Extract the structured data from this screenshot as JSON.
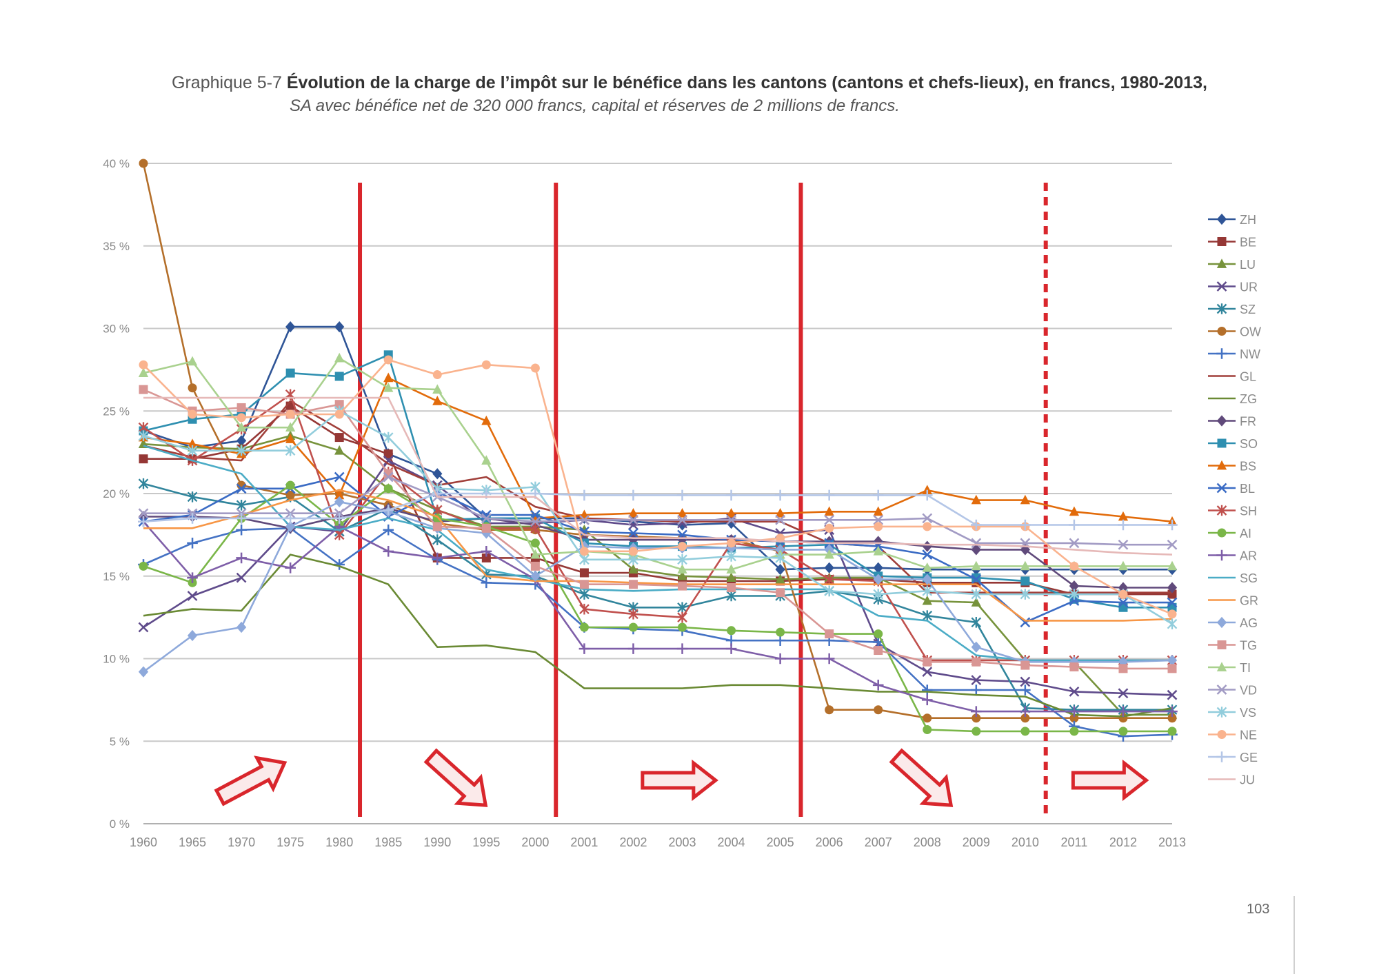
{
  "title": {
    "prefix": "Graphique 5-7",
    "main": "Évolution de la charge de l’impôt sur le bénéfice dans les cantons (cantons et chefs-lieux), en francs, 1980-2013,",
    "subtitle": "SA avec bénéfice net de 320 000 francs, capital et réserves de 2 millions de francs."
  },
  "page_number": "103",
  "chart_data": {
    "type": "line",
    "categories": [
      "1960",
      "1965",
      "1970",
      "1975",
      "1980",
      "1985",
      "1990",
      "1995",
      "2000",
      "2001",
      "2002",
      "2003",
      "2004",
      "2005",
      "2006",
      "2007",
      "2008",
      "2009",
      "2010",
      "2011",
      "2012",
      "2013"
    ],
    "y_ticks": [
      "0 %",
      "5 %",
      "10 %",
      "15 %",
      "20 %",
      "25 %",
      "30 %",
      "35 %",
      "40 %"
    ],
    "ylim": [
      0,
      40
    ],
    "grid": true,
    "legend_position": "right",
    "period_dividers": [
      {
        "after": "1980",
        "style": "solid"
      },
      {
        "after": "2000",
        "style": "solid"
      },
      {
        "after": "2005",
        "style": "solid"
      },
      {
        "after": "2010",
        "style": "dashed"
      }
    ],
    "trend_arrows": [
      "up",
      "down",
      "flat",
      "down",
      "flat"
    ],
    "divider_color": "#d9262c",
    "series": [
      {
        "name": "ZH",
        "color": "#2f5597",
        "marker": "diamond",
        "values": [
          23.8,
          22.8,
          23.2,
          30.1,
          30.1,
          22.4,
          21.2,
          18.5,
          18.5,
          18.5,
          18.3,
          18.1,
          18.2,
          15.4,
          15.5,
          15.5,
          15.4,
          15.4,
          15.4,
          15.4,
          15.4,
          15.4
        ]
      },
      {
        "name": "BE",
        "color": "#953735",
        "marker": "square",
        "values": [
          22.1,
          22.1,
          22.7,
          25.3,
          23.4,
          22.4,
          16.1,
          16.1,
          16.1,
          15.2,
          15.2,
          14.7,
          14.7,
          14.7,
          14.8,
          14.8,
          14.6,
          14.6,
          14.6,
          13.9,
          13.9,
          13.9
        ]
      },
      {
        "name": "LU",
        "color": "#77933c",
        "marker": "triangle",
        "values": [
          23.0,
          22.8,
          22.7,
          23.5,
          22.6,
          20.3,
          19.0,
          18.0,
          18.0,
          17.8,
          15.4,
          15.0,
          14.9,
          14.8,
          14.9,
          14.9,
          13.5,
          13.4,
          9.9,
          9.8,
          6.6,
          6.6
        ]
      },
      {
        "name": "UR",
        "color": "#5f4b8b",
        "marker": "x",
        "values": [
          11.9,
          13.8,
          14.9,
          18.0,
          17.7,
          22.0,
          20.5,
          18.2,
          18.2,
          18.4,
          18.1,
          18.2,
          18.5,
          17.6,
          17.8,
          10.9,
          9.2,
          8.7,
          8.6,
          8.0,
          7.9,
          7.8
        ]
      },
      {
        "name": "SZ",
        "color": "#31859c",
        "marker": "asterisk",
        "values": [
          20.6,
          19.8,
          19.3,
          19.8,
          17.7,
          19.1,
          17.2,
          15.1,
          15.0,
          13.9,
          13.1,
          13.1,
          13.8,
          13.8,
          14.1,
          13.6,
          12.6,
          12.2,
          7.0,
          6.9,
          6.9,
          6.9
        ]
      },
      {
        "name": "OW",
        "color": "#b46f2a",
        "marker": "circle",
        "values": [
          40.0,
          26.4,
          20.5,
          19.9,
          20.0,
          19.3,
          18.2,
          17.8,
          17.8,
          17.5,
          17.4,
          17.3,
          17.2,
          16.5,
          6.9,
          6.9,
          6.4,
          6.4,
          6.4,
          6.4,
          6.4,
          6.4
        ]
      },
      {
        "name": "NW",
        "color": "#4472c4",
        "marker": "plus",
        "values": [
          15.7,
          17.0,
          17.8,
          17.9,
          15.7,
          17.8,
          16.0,
          14.6,
          14.5,
          11.9,
          11.8,
          11.7,
          11.1,
          11.1,
          11.1,
          11.0,
          8.1,
          8.1,
          8.1,
          5.9,
          5.3,
          5.4
        ]
      },
      {
        "name": "GL",
        "color": "#a13f3a",
        "marker": "none",
        "values": [
          22.9,
          22.2,
          22.0,
          25.6,
          23.9,
          21.8,
          20.5,
          21.0,
          19.2,
          18.5,
          18.4,
          18.3,
          18.3,
          18.3,
          17.0,
          16.8,
          14.0,
          14.0,
          14.0,
          14.0,
          14.0,
          14.0
        ]
      },
      {
        "name": "ZG",
        "color": "#6a8a34",
        "marker": "none",
        "values": [
          12.6,
          13.0,
          12.9,
          16.3,
          15.6,
          14.5,
          10.7,
          10.8,
          10.4,
          8.2,
          8.2,
          8.2,
          8.4,
          8.4,
          8.2,
          8.0,
          8.0,
          7.8,
          7.7,
          6.6,
          6.5,
          7.0
        ]
      },
      {
        "name": "FR",
        "color": "#604a7b",
        "marker": "diamond",
        "values": [
          18.6,
          18.6,
          18.5,
          17.9,
          18.6,
          19.1,
          18.3,
          18.5,
          18.1,
          17.2,
          17.2,
          17.2,
          17.2,
          17.1,
          17.1,
          17.1,
          16.8,
          16.6,
          16.6,
          14.4,
          14.3,
          14.3
        ]
      },
      {
        "name": "SO",
        "color": "#2e8fb0",
        "marker": "square",
        "values": [
          23.8,
          24.5,
          24.8,
          27.3,
          27.1,
          28.4,
          18.4,
          18.5,
          18.5,
          17.0,
          16.8,
          16.8,
          16.7,
          16.8,
          16.9,
          15.0,
          14.9,
          14.9,
          14.7,
          13.6,
          13.1,
          13.1
        ]
      },
      {
        "name": "BS",
        "color": "#e26b0a",
        "marker": "triangle",
        "values": [
          23.4,
          23.0,
          22.4,
          23.3,
          19.9,
          27.0,
          25.6,
          24.4,
          18.5,
          18.7,
          18.8,
          18.8,
          18.8,
          18.8,
          18.9,
          18.9,
          20.2,
          19.6,
          19.6,
          18.9,
          18.6,
          18.3
        ]
      },
      {
        "name": "BL",
        "color": "#3a6bc4",
        "marker": "x",
        "values": [
          18.3,
          18.7,
          20.3,
          20.3,
          21.0,
          18.6,
          20.1,
          18.7,
          18.7,
          17.7,
          17.6,
          17.5,
          17.2,
          17.1,
          17.0,
          16.8,
          16.3,
          14.8,
          12.2,
          13.5,
          13.4,
          13.4
        ]
      },
      {
        "name": "SH",
        "color": "#c0504d",
        "marker": "asterisk",
        "values": [
          24.0,
          22.0,
          23.9,
          26.0,
          17.5,
          21.3,
          19.0,
          17.9,
          17.9,
          13.0,
          12.7,
          12.5,
          17.0,
          16.6,
          14.8,
          14.7,
          9.9,
          9.9,
          9.9,
          9.9,
          9.9,
          9.9
        ]
      },
      {
        "name": "AI",
        "color": "#7ab648",
        "marker": "circle",
        "values": [
          15.6,
          14.6,
          18.5,
          20.5,
          18.1,
          20.3,
          18.5,
          18.0,
          17.0,
          11.9,
          11.9,
          11.9,
          11.7,
          11.6,
          11.5,
          11.5,
          5.7,
          5.6,
          5.6,
          5.6,
          5.6,
          5.6
        ]
      },
      {
        "name": "AR",
        "color": "#7e5ea8",
        "marker": "plus",
        "values": [
          18.3,
          14.9,
          16.1,
          15.5,
          18.0,
          16.5,
          16.1,
          16.5,
          14.8,
          10.6,
          10.6,
          10.6,
          10.6,
          10.0,
          10.0,
          8.4,
          7.5,
          6.8,
          6.8,
          6.8,
          6.8,
          6.8
        ]
      },
      {
        "name": "SG",
        "color": "#4bacc6",
        "marker": "none",
        "values": [
          22.9,
          22.0,
          21.2,
          18.0,
          17.8,
          18.5,
          17.8,
          15.4,
          14.8,
          14.2,
          14.1,
          14.2,
          14.2,
          14.2,
          14.2,
          12.6,
          12.3,
          10.2,
          9.9,
          9.9,
          9.9,
          9.9
        ]
      },
      {
        "name": "GR",
        "color": "#f79646",
        "marker": "none",
        "values": [
          17.9,
          17.9,
          18.7,
          19.6,
          20.2,
          19.6,
          18.6,
          15.0,
          14.7,
          14.7,
          14.6,
          14.5,
          14.5,
          14.5,
          14.5,
          14.5,
          14.5,
          14.5,
          12.3,
          12.3,
          12.3,
          12.4
        ]
      },
      {
        "name": "AG",
        "color": "#8ea9db",
        "marker": "diamond",
        "values": [
          9.2,
          11.4,
          11.9,
          18.0,
          19.5,
          18.9,
          17.9,
          17.6,
          15.0,
          16.8,
          16.7,
          16.7,
          16.7,
          16.6,
          16.6,
          14.8,
          14.8,
          10.7,
          9.8,
          9.8,
          9.8,
          9.9
        ]
      },
      {
        "name": "TG",
        "color": "#d99694",
        "marker": "square",
        "values": [
          26.3,
          25.0,
          25.2,
          24.8,
          25.4,
          21.2,
          18.0,
          17.9,
          15.6,
          14.5,
          14.5,
          14.4,
          14.3,
          14.0,
          11.5,
          10.5,
          9.8,
          9.8,
          9.6,
          9.5,
          9.4,
          9.4
        ]
      },
      {
        "name": "TI",
        "color": "#a9d18e",
        "marker": "triangle",
        "values": [
          27.3,
          28.0,
          24.0,
          24.0,
          28.2,
          26.4,
          26.3,
          22.0,
          16.3,
          16.5,
          16.3,
          15.4,
          15.4,
          16.3,
          16.3,
          16.5,
          15.5,
          15.6,
          15.6,
          15.6,
          15.6,
          15.6
        ]
      },
      {
        "name": "VD",
        "color": "#a29bc4",
        "marker": "x",
        "values": [
          18.8,
          18.8,
          18.8,
          18.8,
          18.8,
          21.0,
          19.8,
          18.5,
          18.3,
          18.4,
          18.4,
          18.4,
          18.4,
          18.4,
          18.4,
          18.4,
          18.5,
          17.0,
          17.0,
          17.0,
          16.9,
          16.9
        ]
      },
      {
        "name": "VS",
        "color": "#92cddc",
        "marker": "asterisk",
        "values": [
          23.5,
          22.6,
          22.6,
          22.6,
          25.0,
          23.4,
          20.3,
          20.2,
          20.4,
          16.0,
          16.0,
          16.0,
          16.2,
          16.1,
          14.1,
          13.9,
          14.1,
          13.9,
          13.9,
          13.9,
          13.9,
          12.1
        ]
      },
      {
        "name": "NE",
        "color": "#fab38e",
        "marker": "circle",
        "values": [
          27.8,
          24.8,
          24.6,
          24.8,
          24.8,
          28.1,
          27.2,
          27.8,
          27.6,
          16.5,
          16.5,
          16.8,
          17.0,
          17.3,
          17.9,
          18.0,
          18.0,
          18.0,
          18.0,
          15.6,
          13.9,
          12.7
        ]
      },
      {
        "name": "GE",
        "color": "#b4c6e7",
        "marker": "plus",
        "values": [
          18.3,
          18.5,
          18.5,
          18.5,
          18.5,
          19.0,
          20.0,
          20.0,
          20.0,
          19.9,
          19.9,
          19.9,
          19.9,
          19.9,
          19.9,
          19.9,
          19.9,
          18.1,
          18.1,
          18.1,
          18.1,
          18.1
        ]
      },
      {
        "name": "JU",
        "color": "#e6b9b8",
        "marker": "none",
        "values": [
          25.8,
          25.8,
          25.8,
          25.8,
          25.8,
          25.8,
          19.8,
          19.8,
          19.8,
          17.5,
          17.3,
          17.3,
          17.3,
          17.1,
          17.0,
          17.0,
          16.9,
          16.9,
          16.8,
          16.6,
          16.4,
          16.3
        ]
      }
    ]
  }
}
